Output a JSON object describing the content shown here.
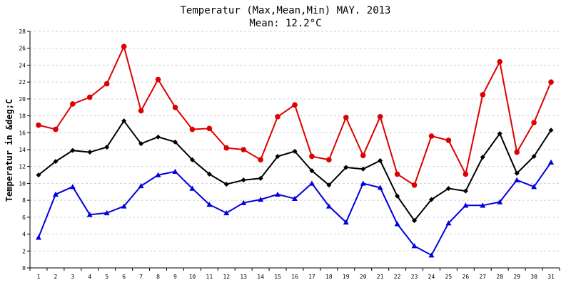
{
  "chart_data": {
    "type": "line",
    "title": "Temperatur (Max,Mean,Min) MAY. 2013",
    "subtitle": "Mean: 12.2°C",
    "xlabel": "",
    "ylabel": "Temperatur in &deg;C",
    "ylim": [
      0,
      28
    ],
    "ytick_step": 2,
    "grid": true,
    "categories": [
      "1",
      "2",
      "3",
      "4",
      "5",
      "6",
      "7",
      "8",
      "9",
      "10",
      "11",
      "12",
      "13",
      "14",
      "15",
      "16",
      "17",
      "18",
      "19",
      "20",
      "21",
      "22",
      "23",
      "24",
      "25",
      "26",
      "27",
      "28",
      "29",
      "30",
      "31"
    ],
    "series": [
      {
        "color": "#dd0000",
        "marker": "circle",
        "values": [
          16.9,
          16.4,
          19.4,
          20.2,
          21.8,
          26.2,
          18.6,
          22.3,
          19.0,
          16.4,
          16.5,
          14.2,
          14.0,
          12.8,
          17.9,
          19.3,
          13.2,
          12.8,
          17.8,
          13.3,
          17.9,
          11.1,
          9.8,
          15.6,
          15.1,
          11.1,
          20.5,
          24.4,
          13.7,
          17.2,
          22.0
        ]
      },
      {
        "color": "#000000",
        "marker": "diamond",
        "values": [
          11.0,
          12.6,
          13.9,
          13.7,
          14.3,
          17.4,
          14.7,
          15.5,
          14.9,
          12.8,
          11.1,
          9.9,
          10.4,
          10.6,
          13.2,
          13.8,
          11.5,
          9.8,
          11.9,
          11.7,
          12.7,
          8.5,
          5.6,
          8.1,
          9.4,
          9.1,
          13.1,
          15.9,
          11.2,
          13.2,
          16.3
        ]
      },
      {
        "color": "#0000dd",
        "marker": "triangle",
        "values": [
          3.6,
          8.7,
          9.6,
          6.3,
          6.5,
          7.3,
          9.7,
          11.0,
          11.4,
          9.4,
          7.5,
          6.5,
          7.7,
          8.1,
          8.7,
          8.2,
          10.0,
          7.3,
          5.4,
          10.0,
          9.5,
          5.2,
          2.6,
          1.5,
          5.3,
          7.4,
          7.4,
          7.8,
          10.4,
          9.6,
          12.5
        ]
      }
    ]
  }
}
